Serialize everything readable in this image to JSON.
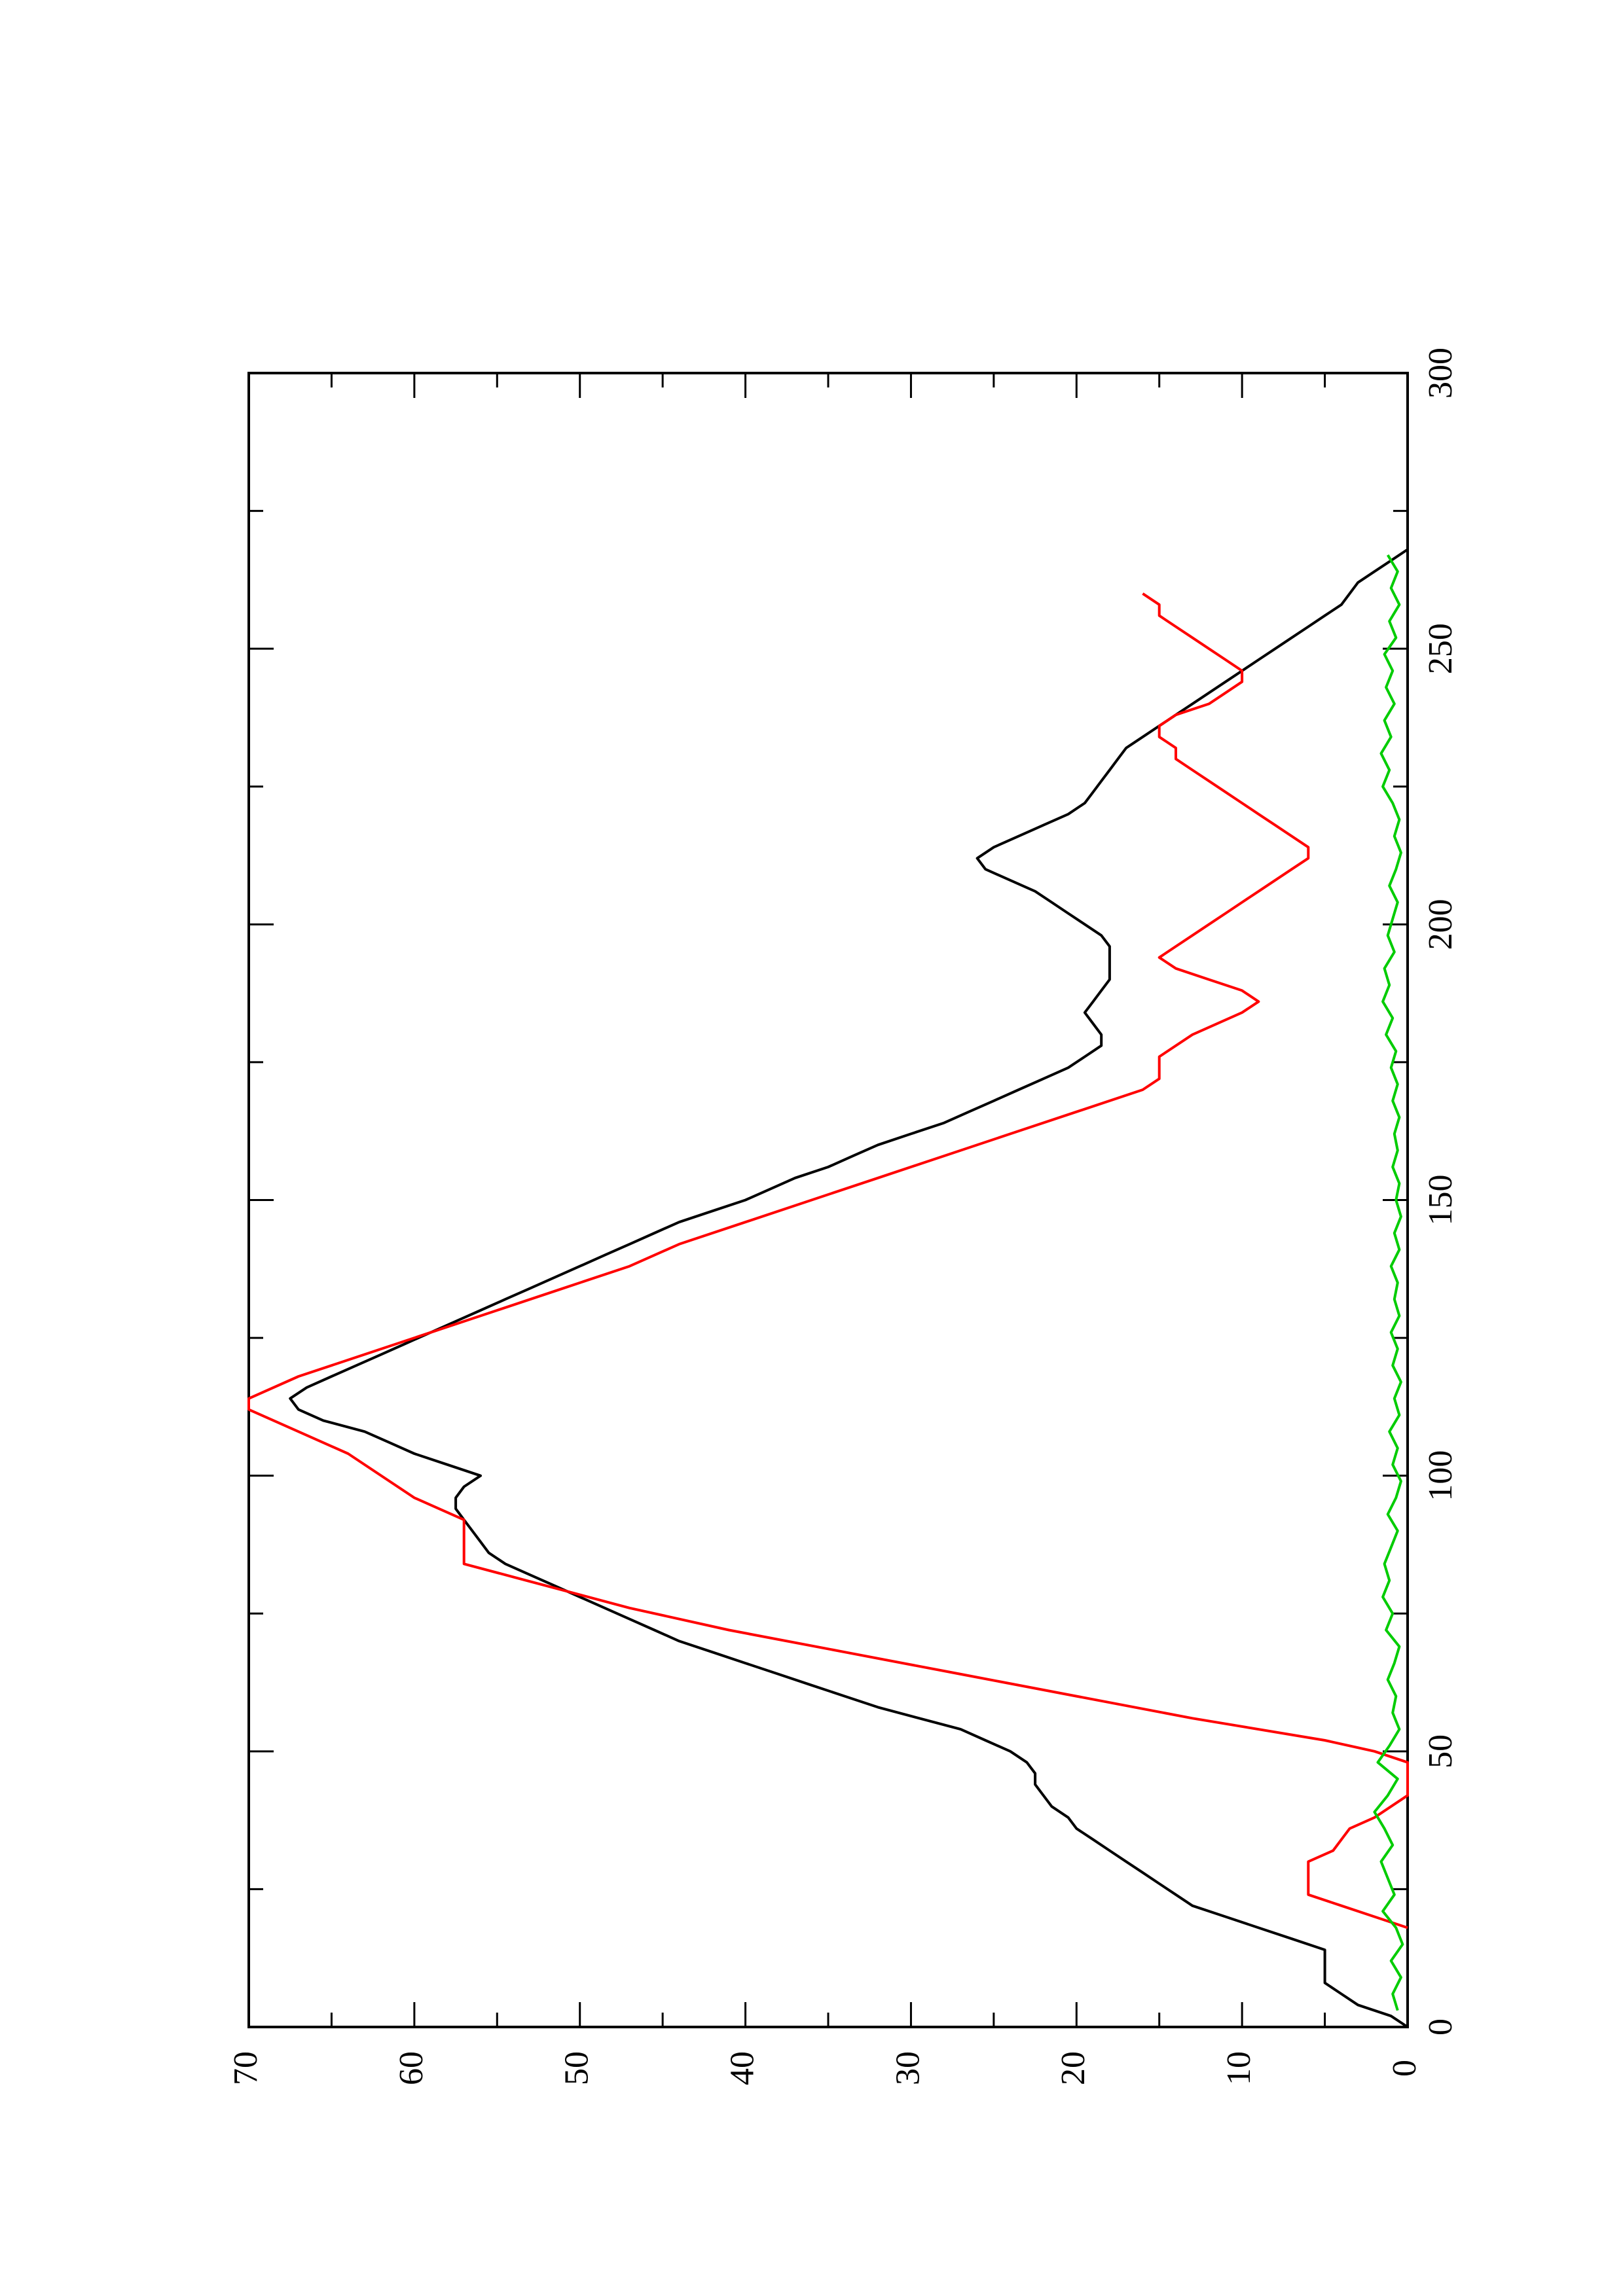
{
  "chart_data": {
    "type": "line",
    "title": "",
    "xlabel": "",
    "ylabel": "",
    "orientation": "rotated 90° counter-clockwise on the page",
    "xlim": [
      0,
      300
    ],
    "ylim": [
      0,
      70
    ],
    "x_ticks": [
      0,
      50,
      100,
      150,
      200,
      250,
      300
    ],
    "x_tick_labels": [
      "0",
      "50",
      "100",
      "150",
      "200",
      "250",
      "300"
    ],
    "y_ticks": [
      0,
      10,
      20,
      30,
      40,
      50,
      60,
      70
    ],
    "y_tick_labels": [
      "0",
      "10",
      "20",
      "30",
      "40",
      "50",
      "60",
      "70"
    ],
    "grid": false,
    "legend": "none",
    "series": [
      {
        "color": "#000000",
        "points": [
          [
            0,
            0
          ],
          [
            2,
            1
          ],
          [
            4,
            3
          ],
          [
            6,
            4
          ],
          [
            8,
            5
          ],
          [
            14,
            5
          ],
          [
            16,
            7
          ],
          [
            18,
            9
          ],
          [
            20,
            11
          ],
          [
            22,
            13
          ],
          [
            24,
            14
          ],
          [
            26,
            15
          ],
          [
            28,
            16
          ],
          [
            30,
            17
          ],
          [
            32,
            18
          ],
          [
            34,
            19
          ],
          [
            36,
            20
          ],
          [
            38,
            20.5
          ],
          [
            40,
            21.5
          ],
          [
            42,
            22
          ],
          [
            44,
            22.5
          ],
          [
            46,
            22.5
          ],
          [
            48,
            23
          ],
          [
            50,
            24
          ],
          [
            52,
            25.5
          ],
          [
            54,
            27
          ],
          [
            56,
            29.5
          ],
          [
            58,
            32
          ],
          [
            60,
            34
          ],
          [
            62,
            36
          ],
          [
            64,
            38
          ],
          [
            66,
            40
          ],
          [
            68,
            42
          ],
          [
            70,
            44
          ],
          [
            72,
            45.5
          ],
          [
            74,
            47
          ],
          [
            76,
            48.5
          ],
          [
            78,
            50
          ],
          [
            80,
            51.5
          ],
          [
            82,
            53
          ],
          [
            84,
            54.5
          ],
          [
            86,
            55.5
          ],
          [
            88,
            56
          ],
          [
            90,
            56.5
          ],
          [
            92,
            57
          ],
          [
            94,
            57.5
          ],
          [
            96,
            57.5
          ],
          [
            98,
            57
          ],
          [
            100,
            56
          ],
          [
            102,
            58
          ],
          [
            104,
            60
          ],
          [
            106,
            61.5
          ],
          [
            108,
            63
          ],
          [
            110,
            65.5
          ],
          [
            112,
            67
          ],
          [
            114,
            67.5
          ],
          [
            116,
            66.5
          ],
          [
            118,
            65
          ],
          [
            120,
            63.5
          ],
          [
            122,
            62
          ],
          [
            124,
            60.5
          ],
          [
            126,
            59
          ],
          [
            128,
            57.5
          ],
          [
            130,
            56
          ],
          [
            132,
            54.5
          ],
          [
            134,
            53
          ],
          [
            136,
            51.5
          ],
          [
            138,
            50
          ],
          [
            140,
            48.5
          ],
          [
            142,
            47
          ],
          [
            144,
            45.5
          ],
          [
            146,
            44
          ],
          [
            148,
            42
          ],
          [
            150,
            40
          ],
          [
            152,
            38.5
          ],
          [
            154,
            37
          ],
          [
            156,
            35
          ],
          [
            158,
            33.5
          ],
          [
            160,
            32
          ],
          [
            162,
            30
          ],
          [
            164,
            28
          ],
          [
            166,
            26.5
          ],
          [
            168,
            25
          ],
          [
            170,
            23.5
          ],
          [
            172,
            22
          ],
          [
            174,
            20.5
          ],
          [
            176,
            19.5
          ],
          [
            178,
            18.5
          ],
          [
            180,
            18.5
          ],
          [
            182,
            19
          ],
          [
            184,
            19.5
          ],
          [
            186,
            19
          ],
          [
            188,
            18.5
          ],
          [
            190,
            18
          ],
          [
            192,
            18
          ],
          [
            194,
            18
          ],
          [
            196,
            18
          ],
          [
            198,
            18.5
          ],
          [
            200,
            19.5
          ],
          [
            202,
            20.5
          ],
          [
            204,
            21.5
          ],
          [
            206,
            22.5
          ],
          [
            208,
            24
          ],
          [
            210,
            25.5
          ],
          [
            212,
            26
          ],
          [
            214,
            25
          ],
          [
            216,
            23.5
          ],
          [
            218,
            22
          ],
          [
            220,
            20.5
          ],
          [
            222,
            19.5
          ],
          [
            224,
            19
          ],
          [
            226,
            18.5
          ],
          [
            228,
            18
          ],
          [
            230,
            17.5
          ],
          [
            232,
            17
          ],
          [
            234,
            16
          ],
          [
            236,
            15
          ],
          [
            238,
            14
          ],
          [
            240,
            13
          ],
          [
            242,
            12
          ],
          [
            244,
            11
          ],
          [
            246,
            10
          ],
          [
            248,
            9
          ],
          [
            250,
            8
          ],
          [
            252,
            7
          ],
          [
            254,
            6
          ],
          [
            256,
            5
          ],
          [
            258,
            4
          ],
          [
            260,
            3.5
          ],
          [
            262,
            3
          ],
          [
            264,
            2
          ],
          [
            266,
            1
          ],
          [
            268,
            0
          ]
        ]
      },
      {
        "color": "#ff0000",
        "points": [
          [
            18,
            0
          ],
          [
            20,
            2
          ],
          [
            22,
            4
          ],
          [
            24,
            6
          ],
          [
            30,
            6
          ],
          [
            32,
            4.5
          ],
          [
            34,
            4
          ],
          [
            36,
            3.5
          ],
          [
            38,
            2
          ],
          [
            40,
            1
          ],
          [
            42,
            0
          ],
          [
            48,
            0
          ],
          [
            50,
            2
          ],
          [
            52,
            5
          ],
          [
            56,
            13
          ],
          [
            60,
            20
          ],
          [
            64,
            27
          ],
          [
            68,
            34
          ],
          [
            72,
            41
          ],
          [
            76,
            47
          ],
          [
            80,
            52
          ],
          [
            84,
            57
          ],
          [
            92,
            57
          ],
          [
            96,
            60
          ],
          [
            104,
            64
          ],
          [
            108,
            67
          ],
          [
            112,
            70
          ],
          [
            114,
            70
          ],
          [
            118,
            67
          ],
          [
            122,
            63
          ],
          [
            126,
            59
          ],
          [
            130,
            55
          ],
          [
            134,
            51
          ],
          [
            138,
            47
          ],
          [
            142,
            44
          ],
          [
            146,
            40
          ],
          [
            150,
            36
          ],
          [
            154,
            32
          ],
          [
            158,
            28
          ],
          [
            162,
            24
          ],
          [
            166,
            20
          ],
          [
            170,
            16
          ],
          [
            172,
            15
          ],
          [
            176,
            15
          ],
          [
            180,
            13
          ],
          [
            184,
            10
          ],
          [
            186,
            9
          ],
          [
            188,
            10
          ],
          [
            190,
            12
          ],
          [
            192,
            14
          ],
          [
            194,
            15
          ],
          [
            196,
            14
          ],
          [
            198,
            13
          ],
          [
            200,
            12
          ],
          [
            202,
            11
          ],
          [
            204,
            10
          ],
          [
            206,
            9
          ],
          [
            208,
            8
          ],
          [
            210,
            7
          ],
          [
            212,
            6
          ],
          [
            214,
            6
          ],
          [
            216,
            7
          ],
          [
            218,
            8
          ],
          [
            220,
            9
          ],
          [
            222,
            10
          ],
          [
            224,
            11
          ],
          [
            226,
            12
          ],
          [
            228,
            13
          ],
          [
            230,
            14
          ],
          [
            232,
            14
          ],
          [
            234,
            15
          ],
          [
            236,
            15
          ],
          [
            238,
            14
          ],
          [
            240,
            12
          ],
          [
            242,
            11
          ],
          [
            244,
            10
          ],
          [
            246,
            10
          ],
          [
            248,
            11
          ],
          [
            250,
            12
          ],
          [
            252,
            13
          ],
          [
            254,
            14
          ],
          [
            256,
            15
          ],
          [
            258,
            15
          ],
          [
            260,
            16
          ]
        ]
      },
      {
        "color": "#00cc00",
        "points": [
          [
            3,
            0.6
          ],
          [
            6,
            0.9
          ],
          [
            9,
            0.4
          ],
          [
            12,
            1
          ],
          [
            15,
            0.3
          ],
          [
            18,
            0.7
          ],
          [
            21,
            1.5
          ],
          [
            24,
            0.8
          ],
          [
            27,
            1.2
          ],
          [
            30,
            1.6
          ],
          [
            33,
            0.9
          ],
          [
            36,
            1.4
          ],
          [
            39,
            2
          ],
          [
            42,
            1.2
          ],
          [
            45,
            0.6
          ],
          [
            48,
            1.8
          ],
          [
            51,
            1.1
          ],
          [
            54,
            0.5
          ],
          [
            57,
            0.9
          ],
          [
            60,
            0.7
          ],
          [
            63,
            1.2
          ],
          [
            66,
            0.8
          ],
          [
            69,
            0.5
          ],
          [
            72,
            1.3
          ],
          [
            75,
            0.9
          ],
          [
            78,
            1.5
          ],
          [
            81,
            1.1
          ],
          [
            84,
            1.4
          ],
          [
            87,
            1
          ],
          [
            90,
            0.6
          ],
          [
            93,
            1.2
          ],
          [
            96,
            0.7
          ],
          [
            99,
            0.4
          ],
          [
            102,
            0.9
          ],
          [
            105,
            0.6
          ],
          [
            108,
            1.1
          ],
          [
            111,
            0.5
          ],
          [
            114,
            0.8
          ],
          [
            117,
            0.4
          ],
          [
            120,
            0.9
          ],
          [
            123,
            0.6
          ],
          [
            126,
            1
          ],
          [
            129,
            0.5
          ],
          [
            132,
            0.8
          ],
          [
            135,
            0.6
          ],
          [
            138,
            1
          ],
          [
            141,
            0.5
          ],
          [
            144,
            0.8
          ],
          [
            147,
            0.4
          ],
          [
            150,
            0.7
          ],
          [
            153,
            0.5
          ],
          [
            156,
            0.9
          ],
          [
            159,
            0.6
          ],
          [
            162,
            0.8
          ],
          [
            165,
            0.5
          ],
          [
            168,
            0.9
          ],
          [
            171,
            0.6
          ],
          [
            174,
            1
          ],
          [
            177,
            0.7
          ],
          [
            180,
            1.3
          ],
          [
            183,
            0.9
          ],
          [
            186,
            1.5
          ],
          [
            189,
            1.1
          ],
          [
            192,
            1.4
          ],
          [
            195,
            0.8
          ],
          [
            198,
            1.2
          ],
          [
            201,
            0.9
          ],
          [
            204,
            0.6
          ],
          [
            207,
            1.1
          ],
          [
            210,
            0.7
          ],
          [
            213,
            0.4
          ],
          [
            216,
            0.8
          ],
          [
            219,
            0.5
          ],
          [
            222,
            0.9
          ],
          [
            225,
            1.5
          ],
          [
            228,
            1.1
          ],
          [
            231,
            1.6
          ],
          [
            234,
            1
          ],
          [
            237,
            1.4
          ],
          [
            240,
            0.8
          ],
          [
            243,
            1.3
          ],
          [
            246,
            0.9
          ],
          [
            249,
            1.4
          ],
          [
            252,
            0.7
          ],
          [
            255,
            1.1
          ],
          [
            258,
            0.5
          ],
          [
            261,
            1
          ],
          [
            264,
            0.6
          ],
          [
            267,
            1.2
          ]
        ]
      }
    ]
  }
}
